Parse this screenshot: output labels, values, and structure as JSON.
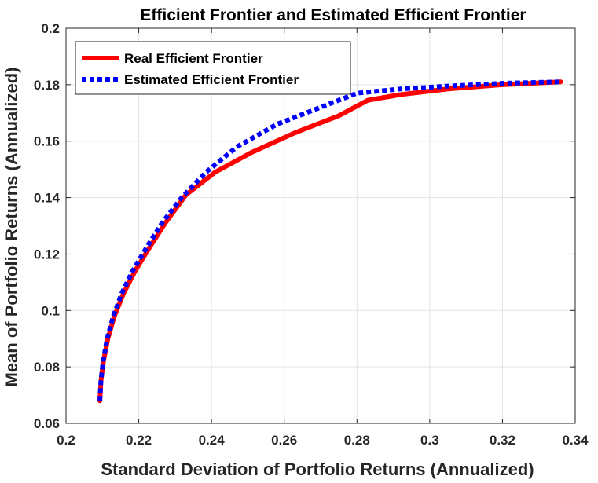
{
  "chart_data": {
    "type": "line",
    "title": "Efficient Frontier and Estimated Efficient Frontier",
    "xlabel": "Standard Deviation of Portfolio Returns (Annualized)",
    "ylabel": "Mean of Portfolio Returns (Annualized)",
    "xlim": [
      0.2,
      0.34
    ],
    "ylim": [
      0.06,
      0.2
    ],
    "x_ticks": [
      0.2,
      0.22,
      0.24,
      0.26,
      0.28,
      0.3,
      0.32,
      0.34
    ],
    "y_ticks": [
      0.06,
      0.08,
      0.1,
      0.12,
      0.14,
      0.16,
      0.18,
      0.2
    ],
    "x_tick_labels": [
      "0.2",
      "0.22",
      "0.24",
      "0.26",
      "0.28",
      "0.3",
      "0.32",
      "0.34"
    ],
    "y_tick_labels": [
      "0.06",
      "0.08",
      "0.1",
      "0.12",
      "0.14",
      "0.16",
      "0.18",
      "0.2"
    ],
    "grid": true,
    "legend_position": "top-left",
    "series": [
      {
        "name": "Real Efficient Frontier",
        "color": "#ff0000",
        "style": "solid",
        "x": [
          0.2093,
          0.2096,
          0.2103,
          0.2115,
          0.2133,
          0.2158,
          0.219,
          0.2228,
          0.2273,
          0.233,
          0.241,
          0.251,
          0.263,
          0.275,
          0.283,
          0.292,
          0.305,
          0.32,
          0.336
        ],
        "y": [
          0.068,
          0.075,
          0.082,
          0.09,
          0.098,
          0.106,
          0.114,
          0.122,
          0.131,
          0.141,
          0.149,
          0.156,
          0.163,
          0.169,
          0.1745,
          0.1765,
          0.1785,
          0.18,
          0.181
        ]
      },
      {
        "name": "Estimated Efficient Frontier",
        "color": "#0000ff",
        "style": "dotted",
        "x": [
          0.2093,
          0.2096,
          0.2102,
          0.2113,
          0.213,
          0.2153,
          0.2183,
          0.222,
          0.2264,
          0.2318,
          0.2385,
          0.247,
          0.258,
          0.27,
          0.28,
          0.292,
          0.305,
          0.32,
          0.336
        ],
        "y": [
          0.068,
          0.075,
          0.082,
          0.09,
          0.098,
          0.106,
          0.114,
          0.122,
          0.131,
          0.14,
          0.149,
          0.158,
          0.166,
          0.172,
          0.177,
          0.1785,
          0.1795,
          0.1805,
          0.181
        ]
      }
    ]
  }
}
